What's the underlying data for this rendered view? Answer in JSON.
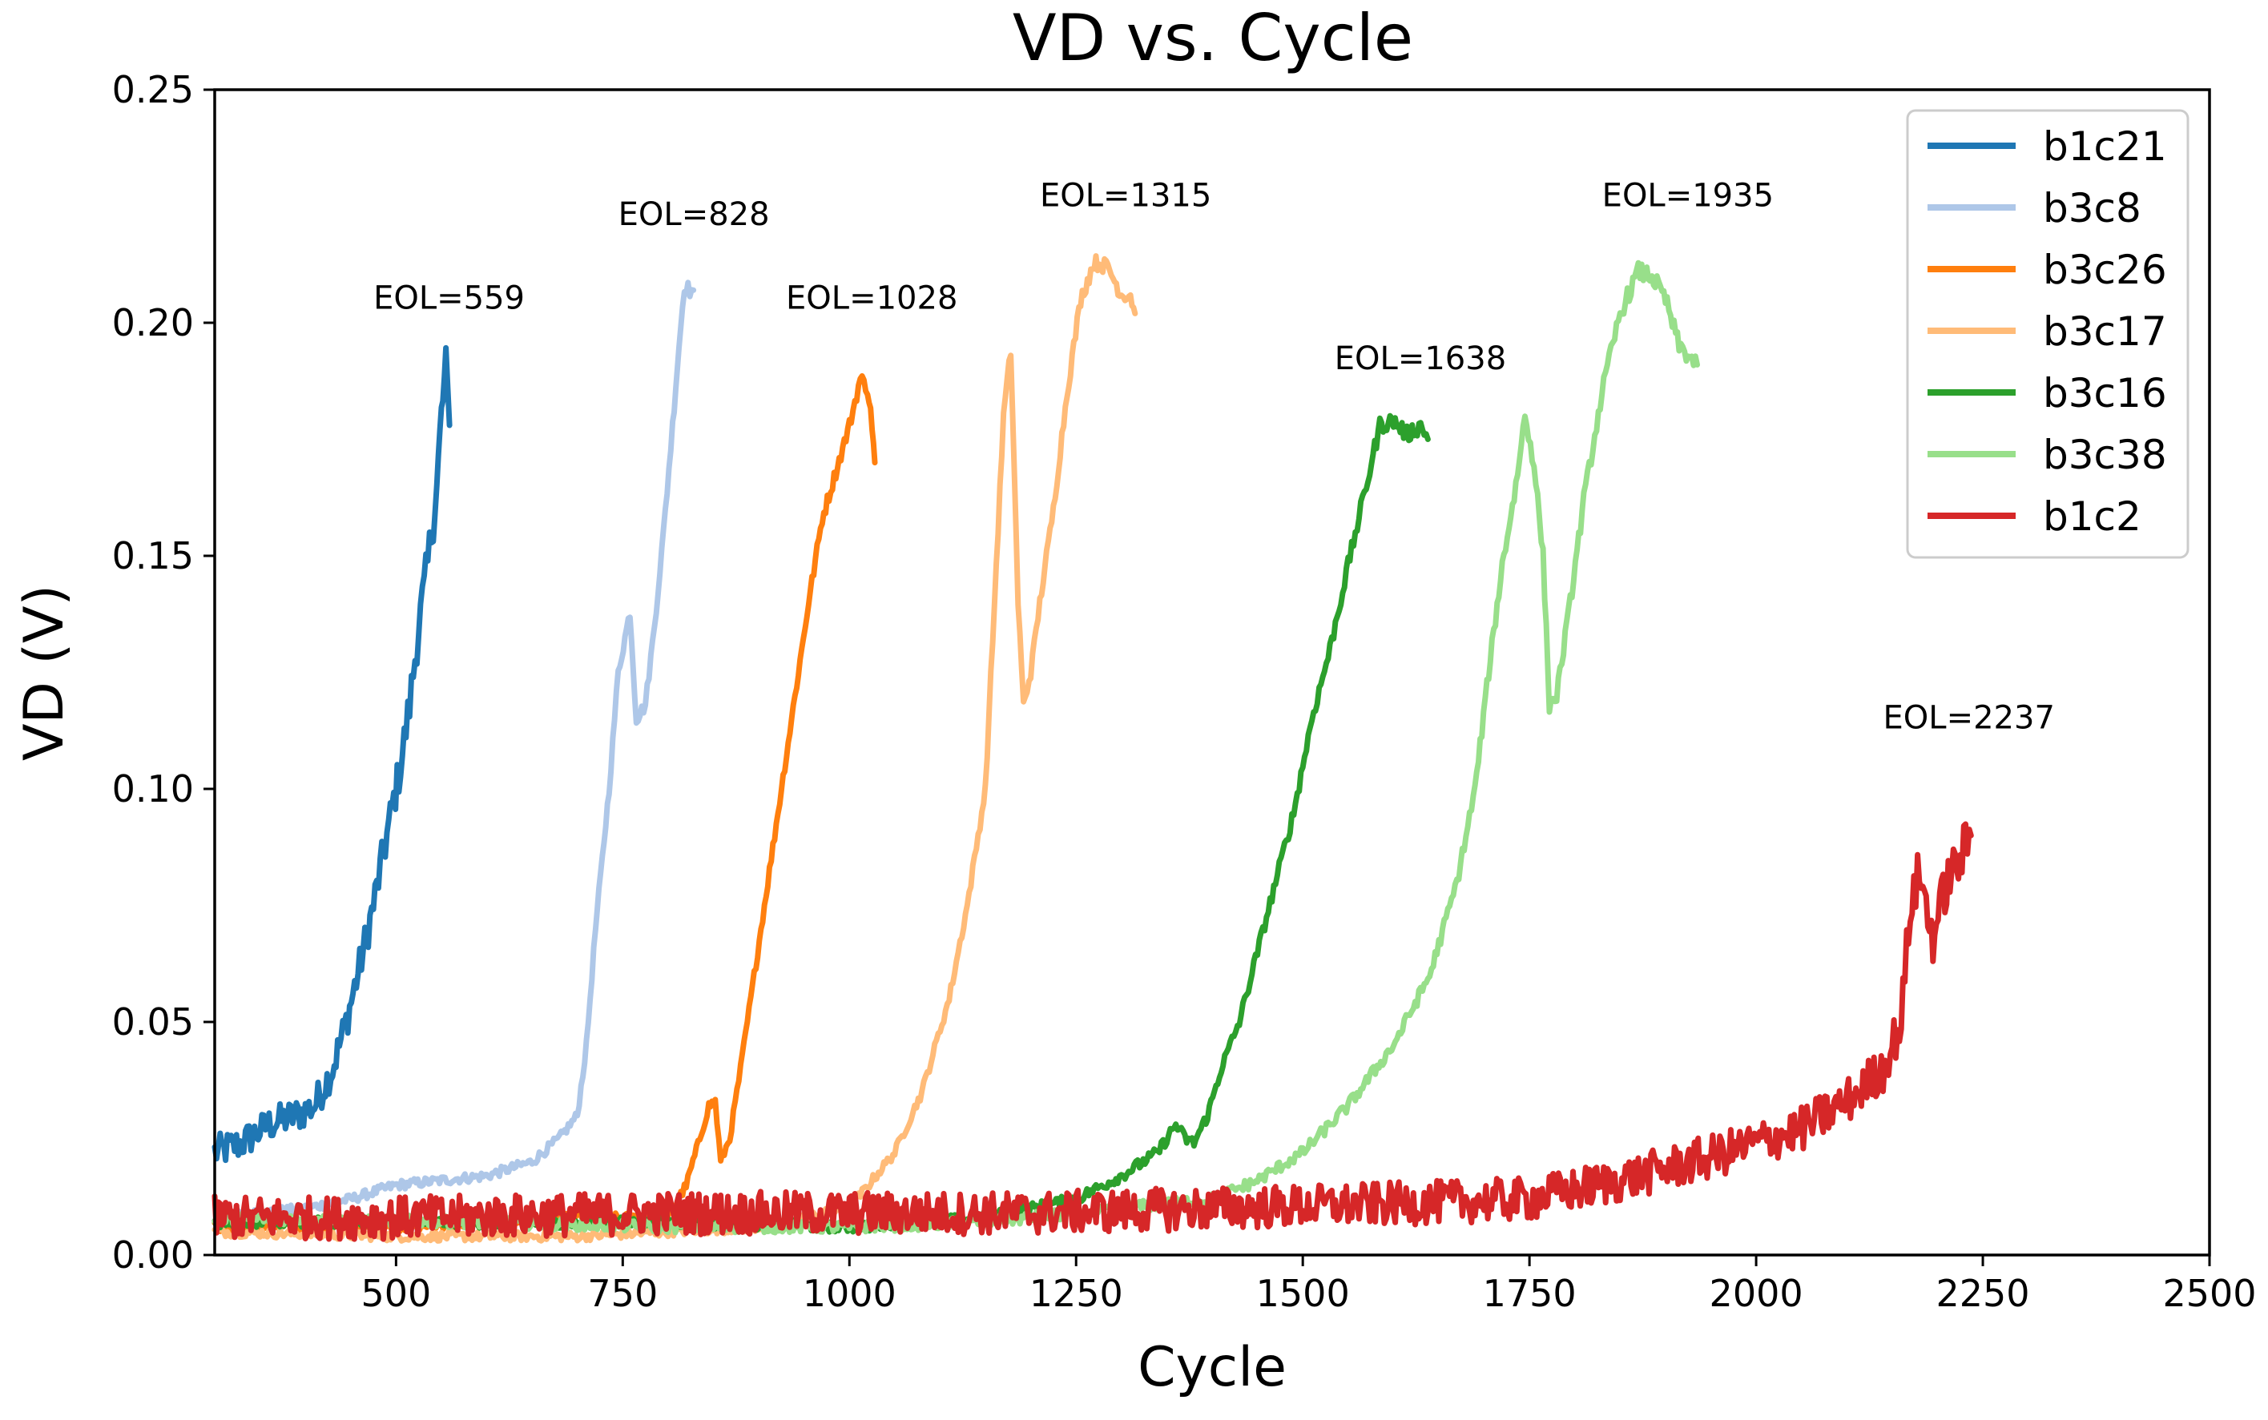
{
  "chart_data": {
    "type": "line",
    "title": "VD vs. Cycle",
    "xlabel": "Cycle",
    "ylabel": "VD (V)",
    "xlim": [
      300,
      2500
    ],
    "ylim": [
      0.0,
      0.25
    ],
    "xticks": [
      500,
      750,
      1000,
      1250,
      1500,
      1750,
      2000,
      2250,
      2500
    ],
    "xtick_labels": [
      "500",
      "750",
      "1000",
      "1250",
      "1500",
      "1750",
      "2000",
      "2250",
      "2500"
    ],
    "yticks": [
      0.0,
      0.05,
      0.1,
      0.15,
      0.2,
      0.25
    ],
    "ytick_labels": [
      "0.00",
      "0.05",
      "0.10",
      "0.15",
      "0.20",
      "0.25"
    ],
    "grid": false,
    "legend_position": "top-right",
    "series": [
      {
        "name": "b1c21",
        "color": "#1f77b4",
        "noise": 0.0035,
        "points": [
          [
            300,
            0.022
          ],
          [
            330,
            0.024
          ],
          [
            360,
            0.028
          ],
          [
            390,
            0.03
          ],
          [
            410,
            0.032
          ],
          [
            430,
            0.04
          ],
          [
            445,
            0.05
          ],
          [
            460,
            0.062
          ],
          [
            475,
            0.075
          ],
          [
            490,
            0.09
          ],
          [
            505,
            0.105
          ],
          [
            515,
            0.118
          ],
          [
            525,
            0.135
          ],
          [
            535,
            0.148
          ],
          [
            545,
            0.165
          ],
          [
            550,
            0.18
          ],
          [
            555,
            0.19
          ],
          [
            559,
            0.178
          ]
        ]
      },
      {
        "name": "b3c8",
        "color": "#aec7e8",
        "noise": 0.001,
        "points": [
          [
            300,
            0.008
          ],
          [
            400,
            0.01
          ],
          [
            450,
            0.012
          ],
          [
            500,
            0.015
          ],
          [
            550,
            0.016
          ],
          [
            600,
            0.017
          ],
          [
            650,
            0.02
          ],
          [
            680,
            0.025
          ],
          [
            700,
            0.03
          ],
          [
            710,
            0.045
          ],
          [
            720,
            0.07
          ],
          [
            735,
            0.1
          ],
          [
            745,
            0.125
          ],
          [
            758,
            0.138
          ],
          [
            765,
            0.115
          ],
          [
            775,
            0.118
          ],
          [
            785,
            0.135
          ],
          [
            795,
            0.155
          ],
          [
            805,
            0.178
          ],
          [
            812,
            0.195
          ],
          [
            818,
            0.208
          ],
          [
            824,
            0.207
          ],
          [
            828,
            0.207
          ]
        ]
      },
      {
        "name": "b3c26",
        "color": "#ff7f0e",
        "noise": 0.001,
        "points": [
          [
            300,
            0.006
          ],
          [
            500,
            0.006
          ],
          [
            700,
            0.008
          ],
          [
            800,
            0.008
          ],
          [
            820,
            0.015
          ],
          [
            835,
            0.025
          ],
          [
            845,
            0.032
          ],
          [
            852,
            0.033
          ],
          [
            858,
            0.02
          ],
          [
            868,
            0.025
          ],
          [
            880,
            0.04
          ],
          [
            895,
            0.06
          ],
          [
            910,
            0.08
          ],
          [
            925,
            0.1
          ],
          [
            940,
            0.12
          ],
          [
            955,
            0.14
          ],
          [
            970,
            0.158
          ],
          [
            985,
            0.168
          ],
          [
            1000,
            0.178
          ],
          [
            1012,
            0.188
          ],
          [
            1020,
            0.186
          ],
          [
            1025,
            0.178
          ],
          [
            1028,
            0.17
          ]
        ]
      },
      {
        "name": "b3c17",
        "color": "#ffbb78",
        "noise": 0.001,
        "points": [
          [
            300,
            0.005
          ],
          [
            500,
            0.004
          ],
          [
            700,
            0.004
          ],
          [
            900,
            0.006
          ],
          [
            1000,
            0.01
          ],
          [
            1050,
            0.022
          ],
          [
            1080,
            0.035
          ],
          [
            1110,
            0.055
          ],
          [
            1130,
            0.075
          ],
          [
            1150,
            0.1
          ],
          [
            1160,
            0.14
          ],
          [
            1170,
            0.18
          ],
          [
            1178,
            0.194
          ],
          [
            1186,
            0.14
          ],
          [
            1192,
            0.118
          ],
          [
            1200,
            0.125
          ],
          [
            1210,
            0.14
          ],
          [
            1225,
            0.16
          ],
          [
            1240,
            0.185
          ],
          [
            1255,
            0.205
          ],
          [
            1270,
            0.213
          ],
          [
            1285,
            0.212
          ],
          [
            1300,
            0.206
          ],
          [
            1310,
            0.206
          ],
          [
            1315,
            0.202
          ]
        ]
      },
      {
        "name": "b3c16",
        "color": "#2ca02c",
        "noise": 0.0012,
        "points": [
          [
            300,
            0.007
          ],
          [
            500,
            0.007
          ],
          [
            800,
            0.007
          ],
          [
            1000,
            0.006
          ],
          [
            1150,
            0.008
          ],
          [
            1250,
            0.012
          ],
          [
            1300,
            0.017
          ],
          [
            1340,
            0.022
          ],
          [
            1360,
            0.028
          ],
          [
            1370,
            0.025
          ],
          [
            1380,
            0.024
          ],
          [
            1395,
            0.03
          ],
          [
            1410,
            0.04
          ],
          [
            1430,
            0.05
          ],
          [
            1450,
            0.065
          ],
          [
            1470,
            0.08
          ],
          [
            1490,
            0.095
          ],
          [
            1510,
            0.115
          ],
          [
            1530,
            0.13
          ],
          [
            1550,
            0.148
          ],
          [
            1570,
            0.165
          ],
          [
            1585,
            0.178
          ],
          [
            1600,
            0.179
          ],
          [
            1615,
            0.176
          ],
          [
            1630,
            0.178
          ],
          [
            1638,
            0.175
          ]
        ]
      },
      {
        "name": "b3c38",
        "color": "#98df8a",
        "noise": 0.0012,
        "points": [
          [
            300,
            0.008
          ],
          [
            600,
            0.007
          ],
          [
            800,
            0.006
          ],
          [
            1000,
            0.006
          ],
          [
            1150,
            0.007
          ],
          [
            1300,
            0.01
          ],
          [
            1400,
            0.012
          ],
          [
            1450,
            0.016
          ],
          [
            1500,
            0.022
          ],
          [
            1550,
            0.032
          ],
          [
            1600,
            0.045
          ],
          [
            1640,
            0.06
          ],
          [
            1670,
            0.08
          ],
          [
            1690,
            0.1
          ],
          [
            1705,
            0.125
          ],
          [
            1720,
            0.148
          ],
          [
            1735,
            0.165
          ],
          [
            1745,
            0.18
          ],
          [
            1755,
            0.17
          ],
          [
            1765,
            0.15
          ],
          [
            1772,
            0.118
          ],
          [
            1780,
            0.12
          ],
          [
            1795,
            0.14
          ],
          [
            1810,
            0.162
          ],
          [
            1830,
            0.185
          ],
          [
            1850,
            0.202
          ],
          [
            1870,
            0.211
          ],
          [
            1885,
            0.21
          ],
          [
            1900,
            0.205
          ],
          [
            1915,
            0.195
          ],
          [
            1935,
            0.191
          ]
        ]
      },
      {
        "name": "b1c2",
        "color": "#d62728",
        "noise": 0.0045,
        "points": [
          [
            300,
            0.008
          ],
          [
            500,
            0.008
          ],
          [
            800,
            0.009
          ],
          [
            1000,
            0.009
          ],
          [
            1200,
            0.009
          ],
          [
            1400,
            0.01
          ],
          [
            1600,
            0.011
          ],
          [
            1750,
            0.012
          ],
          [
            1850,
            0.016
          ],
          [
            1950,
            0.021
          ],
          [
            2050,
            0.027
          ],
          [
            2100,
            0.033
          ],
          [
            2140,
            0.04
          ],
          [
            2160,
            0.05
          ],
          [
            2170,
            0.075
          ],
          [
            2180,
            0.082
          ],
          [
            2195,
            0.068
          ],
          [
            2210,
            0.08
          ],
          [
            2225,
            0.085
          ],
          [
            2237,
            0.09
          ]
        ]
      }
    ],
    "annotations": [
      {
        "text": "EOL=559",
        "x": 475,
        "y": 0.203
      },
      {
        "text": "EOL=828",
        "x": 745,
        "y": 0.221
      },
      {
        "text": "EOL=1028",
        "x": 930,
        "y": 0.203
      },
      {
        "text": "EOL=1315",
        "x": 1210,
        "y": 0.225
      },
      {
        "text": "EOL=1638",
        "x": 1535,
        "y": 0.19
      },
      {
        "text": "EOL=1935",
        "x": 1830,
        "y": 0.225
      },
      {
        "text": "EOL=2237",
        "x": 2140,
        "y": 0.113
      }
    ]
  }
}
